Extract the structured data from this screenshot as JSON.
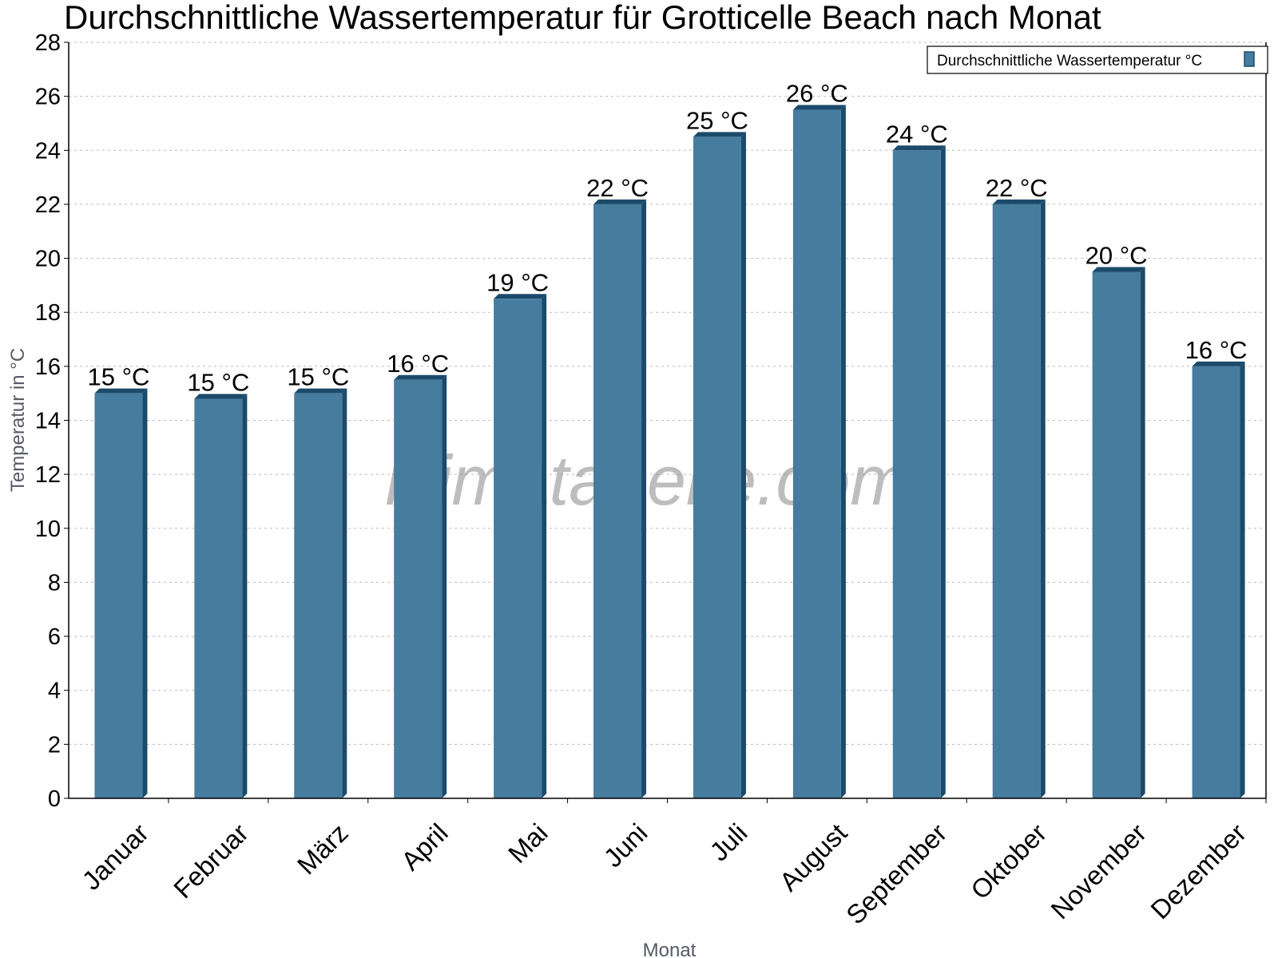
{
  "chart_data": {
    "type": "bar",
    "title": "Durchschnittliche Wassertemperatur für Grotticelle Beach nach Monat",
    "xlabel": "Monat",
    "ylabel": "Temperatur in °C",
    "ylim": [
      0,
      28
    ],
    "yticks": [
      0,
      2,
      4,
      6,
      8,
      10,
      12,
      14,
      16,
      18,
      20,
      22,
      24,
      26,
      28
    ],
    "grid": true,
    "legend_position": "top-right",
    "categories": [
      "Januar",
      "Februar",
      "März",
      "April",
      "Mai",
      "Juni",
      "Juli",
      "August",
      "September",
      "Oktober",
      "November",
      "Dezember"
    ],
    "series": [
      {
        "name": "Durchschnittliche Wassertemperatur °C",
        "color": "#467c9e",
        "values": [
          15.0,
          14.8,
          15.0,
          15.5,
          18.5,
          22.0,
          24.5,
          25.5,
          24.0,
          22.0,
          19.5,
          16.0
        ],
        "data_labels": [
          "15 °C",
          "15 °C",
          "15 °C",
          "16 °C",
          "19 °C",
          "22 °C",
          "25 °C",
          "26 °C",
          "24 °C",
          "22 °C",
          "20 °C",
          "16 °C"
        ]
      }
    ],
    "watermark": "klimatabelle.com"
  }
}
